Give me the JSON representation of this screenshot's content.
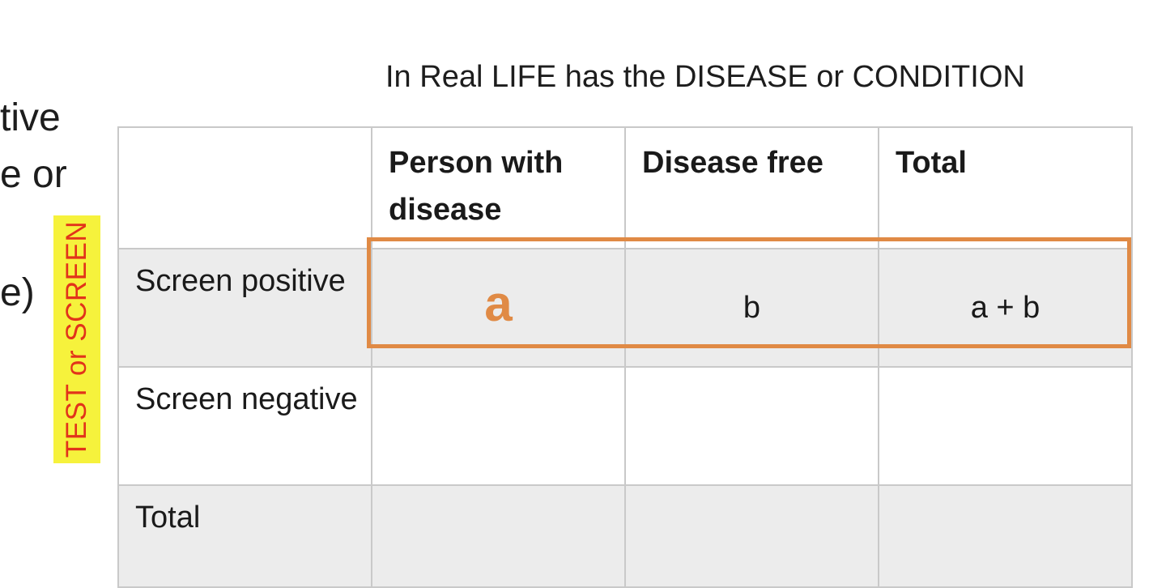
{
  "left_fragments": [
    "tive",
    "e or",
    "e)"
  ],
  "side_label": "TEST or SCREEN",
  "caption": "In Real LIFE has the DISEASE or CONDITION",
  "table": {
    "headers": [
      "",
      "Person with disease",
      "Disease free",
      "Total"
    ],
    "rows": [
      {
        "label": "Screen positive",
        "cells": [
          "a",
          "b",
          "a + b"
        ]
      },
      {
        "label": "Screen negative",
        "cells": [
          "",
          "",
          ""
        ]
      },
      {
        "label": "Total",
        "cells": [
          "",
          "",
          ""
        ]
      }
    ]
  },
  "colors": {
    "highlight_border": "#e08a45",
    "side_label_background": "#f6f23c",
    "side_label_text": "#e2331a",
    "shaded_row": "#ececec"
  }
}
